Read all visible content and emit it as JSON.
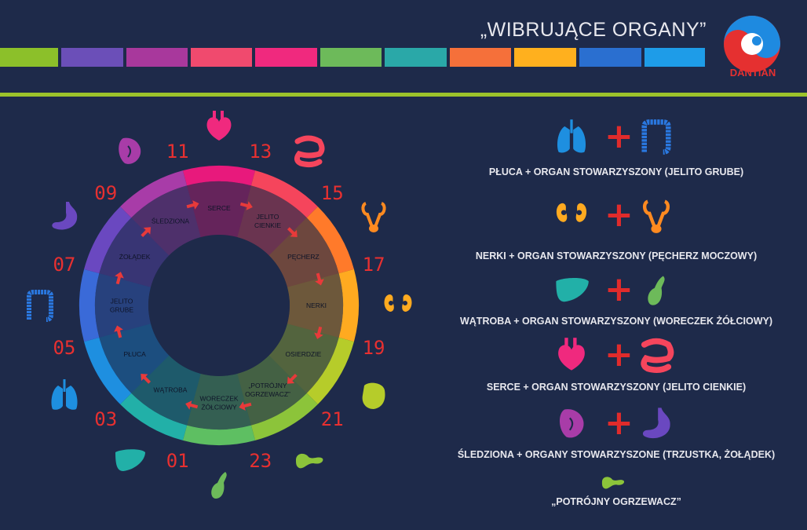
{
  "header": {
    "title": "„WIBRUJĄCE ORGANY”",
    "logo_text": "DANTIAN"
  },
  "colors": {
    "background": "#1e2a4a",
    "accent_line": "#9cc32b",
    "strip": [
      "#8cc02a",
      "#6b4fb8",
      "#a8389c",
      "#f04a6e",
      "#f0297e",
      "#6dba5a",
      "#2aa8a8",
      "#f5703a",
      "#ffb01e",
      "#2a6fd0",
      "#1e9ce8"
    ]
  },
  "wheel": {
    "hours": [
      "11",
      "13",
      "15",
      "17",
      "19",
      "21",
      "23",
      "01",
      "03",
      "05",
      "07",
      "09"
    ],
    "segments": [
      {
        "label": "SERCE",
        "color": "#e8197c"
      },
      {
        "label": "JELITO CIENKIE",
        "color": "#f5455c"
      },
      {
        "label": "PĘCHERZ",
        "color": "#ff7a2a"
      },
      {
        "label": "NERKI",
        "color": "#ffaa20"
      },
      {
        "label": "OSIERDZIE",
        "color": "#b6cc2a"
      },
      {
        "label": "„POTRÓJNY OGRZEWACZ”",
        "color": "#8cc43a"
      },
      {
        "label": "WORECZEK ŻÓŁCIOWY",
        "color": "#5ebf62"
      },
      {
        "label": "WĄTROBA",
        "color": "#22b0a8"
      },
      {
        "label": "PŁUCA",
        "color": "#1e8fe0"
      },
      {
        "label": "JELITO GRUBE",
        "color": "#3a6ad8"
      },
      {
        "label": "ŻOŁĄDEK",
        "color": "#6a48c0"
      },
      {
        "label": "ŚLEDZIONA",
        "color": "#a83ca8"
      }
    ],
    "organ_icons": [
      "heart-icon",
      "small-intestine-icon",
      "bladder-icon",
      "kidneys-icon",
      "pericardium-icon",
      "pancreas-icon",
      "gallbladder-icon",
      "liver-icon",
      "lungs-icon",
      "large-intestine-icon",
      "stomach-icon",
      "spleen-icon"
    ]
  },
  "pairs": [
    {
      "label": "PŁUCA + ORGAN STOWARZYSZONY (JELITO GRUBE)",
      "left_icon": "lungs-icon",
      "right_icon": "large-intestine-icon"
    },
    {
      "label": "NERKI + ORGAN STOWARZYSZONY (PĘCHERZ MOCZOWY)",
      "left_icon": "kidneys-icon",
      "right_icon": "bladder-icon"
    },
    {
      "label": "WĄTROBA + ORGAN STOWARZYSZONY (WORECZEK ŻÓŁCIOWY)",
      "left_icon": "liver-icon",
      "right_icon": "gallbladder-icon"
    },
    {
      "label": "SERCE + ORGAN STOWARZYSZONY (JELITO CIENKIE)",
      "left_icon": "heart-icon",
      "right_icon": "small-intestine-icon"
    },
    {
      "label": "ŚLEDZIONA + ORGANY STOWARZYSZONE (TRZUSTKA, ŻOŁĄDEK)",
      "left_icon": "spleen-icon",
      "right_icon": "stomach-icon"
    },
    {
      "label": "„POTRÓJNY OGRZEWACZ”",
      "left_icon": "pancreas-icon"
    }
  ],
  "plus_sign": "+"
}
